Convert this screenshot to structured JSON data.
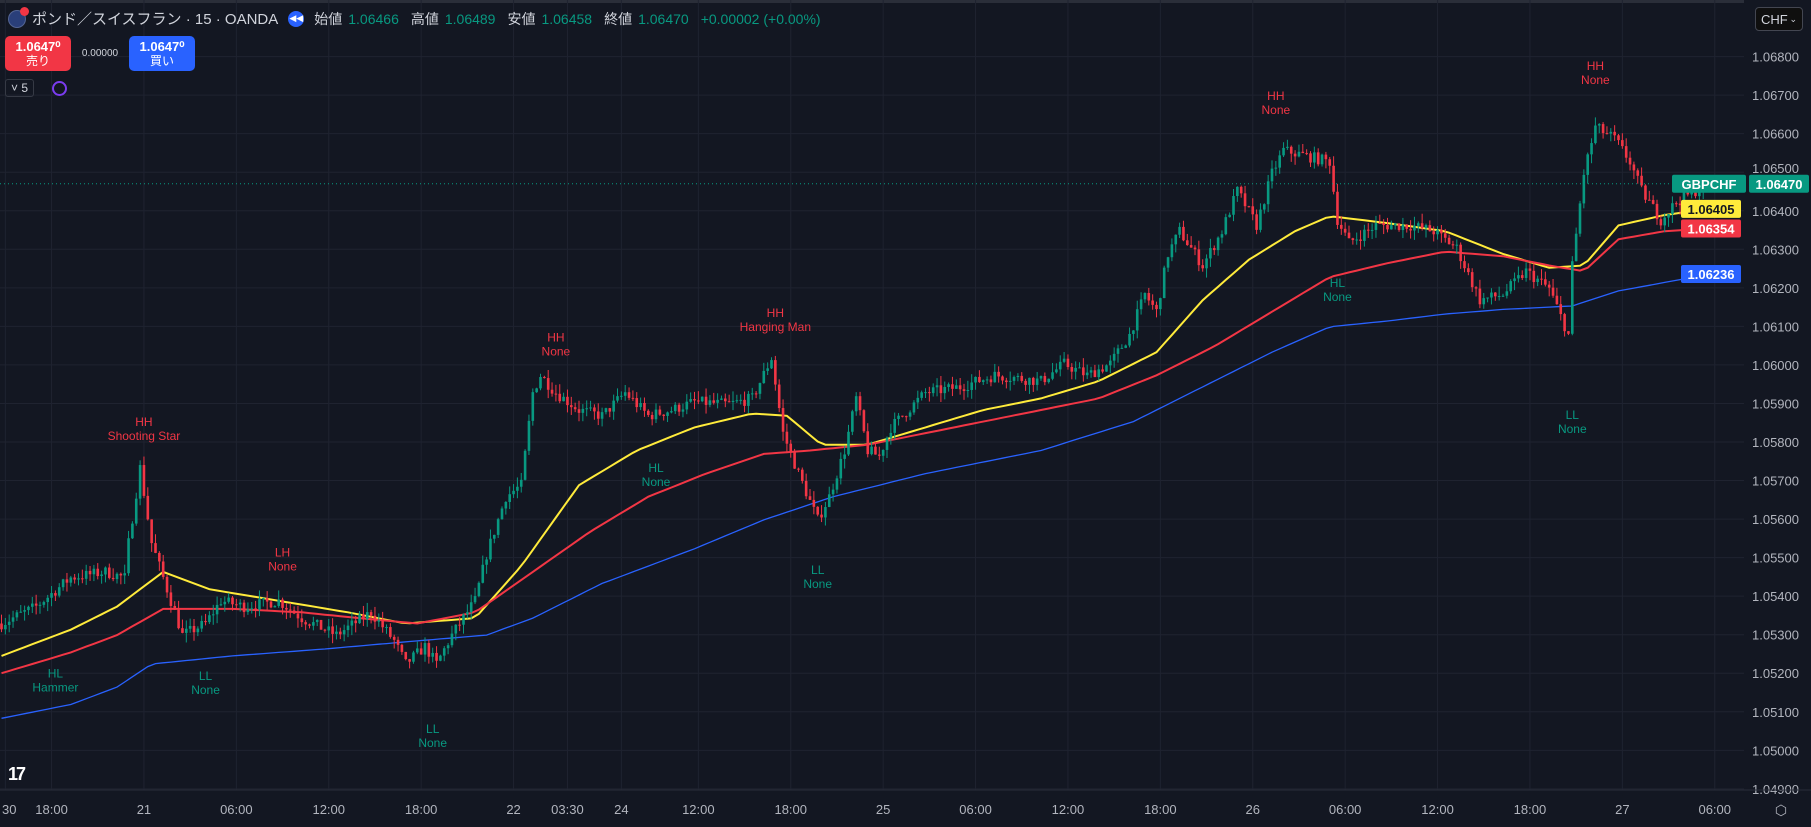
{
  "header": {
    "title": "ポンド／スイスフラン · 15 · OANDA",
    "ohlc": [
      {
        "label": "始値",
        "value": "1.06466"
      },
      {
        "label": "高値",
        "value": "1.06489"
      },
      {
        "label": "安値",
        "value": "1.06458"
      },
      {
        "label": "終値",
        "value": "1.06470"
      }
    ],
    "change": "+0.00002 (+0.00%)"
  },
  "trade": {
    "sell_price": "1.0647⁰",
    "sell_label": "売り",
    "spread": "0.00000",
    "buy_price": "1.0647⁰",
    "buy_label": "買い"
  },
  "indicators_collapse": "˅ 5",
  "currency_select": "CHF",
  "colors": {
    "up": "#089981",
    "down": "#f23645",
    "ma_fast": "#ffeb3b",
    "ma_mid": "#f23645",
    "ma_slow": "#2962ff",
    "bg": "#131722"
  },
  "chart_data": {
    "type": "candlestick",
    "symbol": "GBPCHF",
    "interval_minutes": 15,
    "ylim": [
      1.0485,
      1.0688
    ],
    "y_ticks": [
      "1.06800",
      "1.06700",
      "1.06600",
      "1.06500",
      "1.06400",
      "1.06300",
      "1.06200",
      "1.06100",
      "1.06000",
      "1.05900",
      "1.05800",
      "1.05700",
      "1.05600",
      "1.05500",
      "1.05400",
      "1.05300",
      "1.05200",
      "1.05100",
      "1.05000",
      "1.04900"
    ],
    "x_ticks": [
      {
        "bar": -11,
        "label": "30"
      },
      {
        "bar": 1,
        "label": "18:00"
      },
      {
        "bar": 25,
        "label": "21"
      },
      {
        "bar": 49,
        "label": "06:00"
      },
      {
        "bar": 73,
        "label": "12:00"
      },
      {
        "bar": 97,
        "label": "18:00"
      },
      {
        "bar": 121,
        "label": "22"
      },
      {
        "bar": 135,
        "label": "03:30"
      },
      {
        "bar": 149,
        "label": "24"
      },
      {
        "bar": 169,
        "label": "12:00"
      },
      {
        "bar": 193,
        "label": "18:00"
      },
      {
        "bar": 217,
        "label": "25"
      },
      {
        "bar": 241,
        "label": "06:00"
      },
      {
        "bar": 265,
        "label": "12:00"
      },
      {
        "bar": 289,
        "label": "18:00"
      },
      {
        "bar": 313,
        "label": "26"
      },
      {
        "bar": 337,
        "label": "06:00"
      },
      {
        "bar": 361,
        "label": "12:00"
      },
      {
        "bar": 385,
        "label": "18:00"
      },
      {
        "bar": 409,
        "label": "27"
      },
      {
        "bar": 433,
        "label": "06:00"
      }
    ],
    "bar_count": 445,
    "close_path": [
      [
        0,
        1.05329
      ],
      [
        9,
        1.05373
      ],
      [
        18,
        1.05448
      ],
      [
        27,
        1.05463
      ],
      [
        32,
        1.05448
      ],
      [
        33,
        1.05538
      ],
      [
        36,
        1.05733
      ],
      [
        39,
        1.05538
      ],
      [
        44,
        1.05388
      ],
      [
        47,
        1.05299
      ],
      [
        53,
        1.05329
      ],
      [
        57,
        1.05388
      ],
      [
        63,
        1.05373
      ],
      [
        72,
        1.05388
      ],
      [
        78,
        1.05343
      ],
      [
        87,
        1.05299
      ],
      [
        96,
        1.05358
      ],
      [
        102,
        1.05284
      ],
      [
        105,
        1.05224
      ],
      [
        110,
        1.05269
      ],
      [
        113,
        1.05224
      ],
      [
        117,
        1.05299
      ],
      [
        123,
        1.05388
      ],
      [
        126,
        1.05508
      ],
      [
        131,
        1.05658
      ],
      [
        135,
        1.05688
      ],
      [
        138,
        1.05928
      ],
      [
        140,
        1.05973
      ],
      [
        144,
        1.05928
      ],
      [
        150,
        1.05883
      ],
      [
        156,
        1.05868
      ],
      [
        162,
        1.05928
      ],
      [
        168,
        1.05868
      ],
      [
        174,
        1.05883
      ],
      [
        180,
        1.05904
      ],
      [
        189,
        1.05898
      ],
      [
        195,
        1.05913
      ],
      [
        200,
        1.06018
      ],
      [
        203,
        1.05823
      ],
      [
        207,
        1.05718
      ],
      [
        212,
        1.05598
      ],
      [
        215,
        1.05658
      ],
      [
        219,
        1.05778
      ],
      [
        222,
        1.05913
      ],
      [
        225,
        1.05778
      ],
      [
        228,
        1.05763
      ],
      [
        231,
        1.05838
      ],
      [
        234,
        1.05868
      ],
      [
        240,
        1.05928
      ],
      [
        249,
        1.05943
      ],
      [
        258,
        1.05973
      ],
      [
        270,
        1.05958
      ],
      [
        276,
        1.06003
      ],
      [
        282,
        1.05973
      ],
      [
        288,
        1.06003
      ],
      [
        293,
        1.06078
      ],
      [
        297,
        1.06183
      ],
      [
        300,
        1.06138
      ],
      [
        303,
        1.06288
      ],
      [
        306,
        1.06347
      ],
      [
        312,
        1.06258
      ],
      [
        317,
        1.06347
      ],
      [
        321,
        1.06452
      ],
      [
        326,
        1.06362
      ],
      [
        330,
        1.06497
      ],
      [
        333,
        1.06557
      ],
      [
        339,
        1.06542
      ],
      [
        345,
        1.06527
      ],
      [
        347,
        1.06377
      ],
      [
        350,
        1.06317
      ],
      [
        357,
        1.06362
      ],
      [
        366,
        1.06362
      ],
      [
        372,
        1.06347
      ],
      [
        378,
        1.06303
      ],
      [
        384,
        1.06168
      ],
      [
        390,
        1.06183
      ],
      [
        396,
        1.06243
      ],
      [
        402,
        1.06198
      ],
      [
        407,
        1.06078
      ],
      [
        408,
        1.06258
      ],
      [
        411,
        1.06497
      ],
      [
        414,
        1.06617
      ],
      [
        419,
        1.06587
      ],
      [
        423,
        1.06527
      ],
      [
        426,
        1.06452
      ],
      [
        431,
        1.06377
      ],
      [
        435,
        1.06422
      ],
      [
        440,
        1.06452
      ],
      [
        444,
        1.0647
      ]
    ],
    "moving_averages": [
      {
        "name": "fast",
        "color": "#ffeb3b",
        "last": "1.06405",
        "points": [
          [
            0,
            1.05245
          ],
          [
            18,
            1.05313
          ],
          [
            30,
            1.05373
          ],
          [
            42,
            1.05463
          ],
          [
            54,
            1.05418
          ],
          [
            72,
            1.05388
          ],
          [
            90,
            1.05358
          ],
          [
            105,
            1.05329
          ],
          [
            123,
            1.05343
          ],
          [
            135,
            1.05478
          ],
          [
            150,
            1.05688
          ],
          [
            165,
            1.05778
          ],
          [
            180,
            1.05838
          ],
          [
            195,
            1.05874
          ],
          [
            204,
            1.05868
          ],
          [
            213,
            1.05793
          ],
          [
            225,
            1.05793
          ],
          [
            240,
            1.05838
          ],
          [
            255,
            1.05883
          ],
          [
            270,
            1.05913
          ],
          [
            285,
            1.05958
          ],
          [
            300,
            1.06033
          ],
          [
            312,
            1.06168
          ],
          [
            324,
            1.06273
          ],
          [
            336,
            1.06347
          ],
          [
            345,
            1.06386
          ],
          [
            360,
            1.06368
          ],
          [
            375,
            1.06347
          ],
          [
            390,
            1.06288
          ],
          [
            402,
            1.06252
          ],
          [
            411,
            1.06258
          ],
          [
            420,
            1.06362
          ],
          [
            432,
            1.06389
          ],
          [
            444,
            1.06405
          ]
        ]
      },
      {
        "name": "mid",
        "color": "#f23645",
        "last": "1.06354",
        "points": [
          [
            0,
            1.052
          ],
          [
            18,
            1.05254
          ],
          [
            30,
            1.05299
          ],
          [
            42,
            1.05367
          ],
          [
            60,
            1.05367
          ],
          [
            78,
            1.05358
          ],
          [
            93,
            1.05343
          ],
          [
            108,
            1.05329
          ],
          [
            123,
            1.05358
          ],
          [
            138,
            1.05463
          ],
          [
            153,
            1.05568
          ],
          [
            168,
            1.05658
          ],
          [
            183,
            1.05718
          ],
          [
            198,
            1.05769
          ],
          [
            210,
            1.05778
          ],
          [
            225,
            1.05793
          ],
          [
            240,
            1.05823
          ],
          [
            255,
            1.05853
          ],
          [
            270,
            1.05883
          ],
          [
            285,
            1.05913
          ],
          [
            300,
            1.05973
          ],
          [
            315,
            1.06048
          ],
          [
            330,
            1.06138
          ],
          [
            345,
            1.06228
          ],
          [
            360,
            1.06264
          ],
          [
            375,
            1.06294
          ],
          [
            390,
            1.06282
          ],
          [
            402,
            1.06258
          ],
          [
            411,
            1.06243
          ],
          [
            420,
            1.06326
          ],
          [
            432,
            1.06347
          ],
          [
            444,
            1.06354
          ]
        ]
      },
      {
        "name": "slow",
        "color": "#2962ff",
        "last": "1.06236",
        "points": [
          [
            0,
            1.05083
          ],
          [
            18,
            1.05119
          ],
          [
            30,
            1.05164
          ],
          [
            39,
            1.05224
          ],
          [
            60,
            1.05245
          ],
          [
            84,
            1.05263
          ],
          [
            108,
            1.05284
          ],
          [
            126,
            1.05299
          ],
          [
            138,
            1.05343
          ],
          [
            156,
            1.05433
          ],
          [
            180,
            1.05523
          ],
          [
            198,
            1.05598
          ],
          [
            216,
            1.05658
          ],
          [
            240,
            1.05718
          ],
          [
            270,
            1.05778
          ],
          [
            294,
            1.05853
          ],
          [
            312,
            1.05943
          ],
          [
            330,
            1.06033
          ],
          [
            345,
            1.06099
          ],
          [
            360,
            1.06114
          ],
          [
            375,
            1.06132
          ],
          [
            390,
            1.06144
          ],
          [
            408,
            1.06153
          ],
          [
            420,
            1.06192
          ],
          [
            444,
            1.06236
          ]
        ]
      }
    ],
    "last_price": {
      "symbol": "GBPCHF",
      "value": "1.06470",
      "price": 1.0647
    },
    "annotations": [
      {
        "bar": 37,
        "price": 1.05868,
        "kind": "HH",
        "pattern": "Shooting Star",
        "color": "#f23645"
      },
      {
        "bar": 14,
        "price": 1.05215,
        "kind": "HL",
        "pattern": "Hammer",
        "color": "#089981"
      },
      {
        "bar": 53,
        "price": 1.05209,
        "kind": "LL",
        "pattern": "None",
        "color": "#089981"
      },
      {
        "bar": 73,
        "price": 1.05529,
        "kind": "LH",
        "pattern": "None",
        "color": "#f23645"
      },
      {
        "bar": 112,
        "price": 1.05071,
        "kind": "LL",
        "pattern": "None",
        "color": "#089981"
      },
      {
        "bar": 144,
        "price": 1.06087,
        "kind": "HH",
        "pattern": "None",
        "color": "#f23645"
      },
      {
        "bar": 170,
        "price": 1.05748,
        "kind": "HL",
        "pattern": "None",
        "color": "#089981"
      },
      {
        "bar": 201,
        "price": 1.0615,
        "kind": "HH",
        "pattern": "Hanging Man",
        "color": "#f23645"
      },
      {
        "bar": 212,
        "price": 1.05484,
        "kind": "LL",
        "pattern": "None",
        "color": "#089981"
      },
      {
        "bar": 331,
        "price": 1.06713,
        "kind": "HH",
        "pattern": "None",
        "color": "#f23645"
      },
      {
        "bar": 347,
        "price": 1.06228,
        "kind": "HL",
        "pattern": "None",
        "color": "#089981"
      },
      {
        "bar": 408,
        "price": 1.05886,
        "kind": "LL",
        "pattern": "None",
        "color": "#089981"
      },
      {
        "bar": 414,
        "price": 1.06791,
        "kind": "HH",
        "pattern": "None",
        "color": "#f23645"
      }
    ]
  },
  "logo_text": "TV"
}
